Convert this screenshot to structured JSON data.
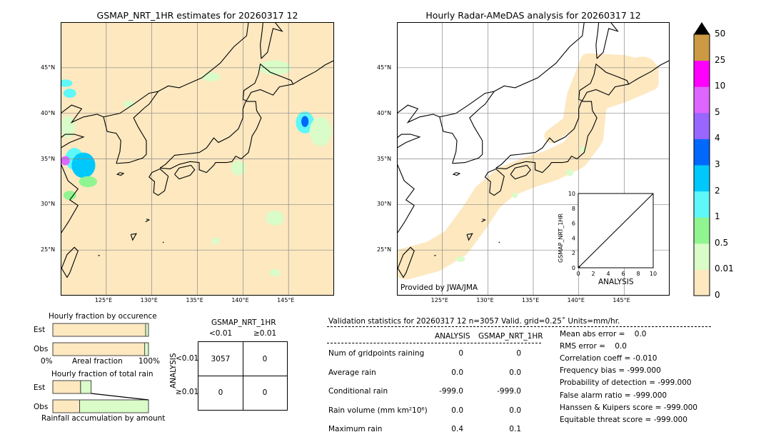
{
  "left_map": {
    "title": "GSMAP_NRT_1HR estimates for 20260317 12"
  },
  "right_map": {
    "title": "Hourly Radar-AMeDAS analysis for 20260317 12",
    "credit": "Provided by JWA/JMA"
  },
  "lon_ticks": [
    "125°E",
    "130°E",
    "135°E",
    "140°E",
    "145°E"
  ],
  "lat_ticks": [
    "45°N",
    "40°N",
    "35°N",
    "30°N",
    "25°N"
  ],
  "inset": {
    "xlabel": "ANALYSIS",
    "ylabel": "GSMAP_NRT_1HR",
    "ticks": [
      "0",
      "2",
      "4",
      "6",
      "8",
      "10"
    ]
  },
  "colorbar": {
    "labels": [
      "0",
      "0.01",
      "0.5",
      "1",
      "2",
      "3",
      "4",
      "5",
      "10",
      "25",
      "50"
    ],
    "colors": [
      "#fde8c0",
      "#d9fcc8",
      "#90f590",
      "#5ef8f8",
      "#00c8fa",
      "#0068fa",
      "#9966ff",
      "#dd66ff",
      "#ff00ff",
      "#cc9944"
    ]
  },
  "occurrence": {
    "title": "Hourly fraction by occurence",
    "est": "Est",
    "obs": "Obs",
    "x0": "0%",
    "xmid": "Areal fraction",
    "x1": "100%"
  },
  "total_rain": {
    "title": "Hourly fraction of total rain",
    "est": "Est",
    "obs": "Obs",
    "xlabel": "Rainfall accumulation by amount"
  },
  "contingency": {
    "title": "GSMAP_NRT_1HR",
    "col1": "<0.01",
    "col2": "≥0.01",
    "ylabel": "ANALYSIS",
    "row1": "<0.01",
    "row2": "≥0.01",
    "cells": [
      "3057",
      "0",
      "0",
      "0"
    ]
  },
  "validation": {
    "header": "Validation statistics for 20260317 12  n=3057 Valid. grid=0.25˚ Units=mm/hr.",
    "col_a": "ANALYSIS",
    "col_b": "GSMAP_NRT_1HR",
    "rows": [
      {
        "label": "Num of gridpoints raining",
        "a": "0",
        "b": "0"
      },
      {
        "label": "Average rain",
        "a": "0.0",
        "b": "0.0"
      },
      {
        "label": "Conditional rain",
        "a": "-999.0",
        "b": "-999.0"
      },
      {
        "label": "Rain volume (mm km²10⁶)",
        "a": "0.0",
        "b": "0.0"
      },
      {
        "label": "Maximum rain",
        "a": "0.4",
        "b": "0.1"
      }
    ],
    "scores": [
      "Mean abs error =    0.0",
      "RMS error =    0.0",
      "Correlation coeff = -0.010",
      "Frequency bias = -999.000",
      "Probability of detection = -999.000",
      "False alarm ratio = -999.000",
      "Hanssen & Kuipers score = -999.000",
      "Equitable threat score = -999.000"
    ]
  },
  "chart_data": {
    "type": "map",
    "extent": {
      "lon": [
        120,
        150
      ],
      "lat": [
        20,
        50
      ]
    },
    "occurrence_fraction": {
      "est_dry": 0.97,
      "est_wet": 0.03,
      "obs_dry": 0.96,
      "obs_wet": 0.04
    },
    "total_rain_fraction": {
      "est": [
        0.29,
        0.11
      ],
      "obs": [
        0.28,
        0.72
      ]
    },
    "contingency": [
      [
        3057,
        0
      ],
      [
        0,
        0
      ]
    ]
  }
}
